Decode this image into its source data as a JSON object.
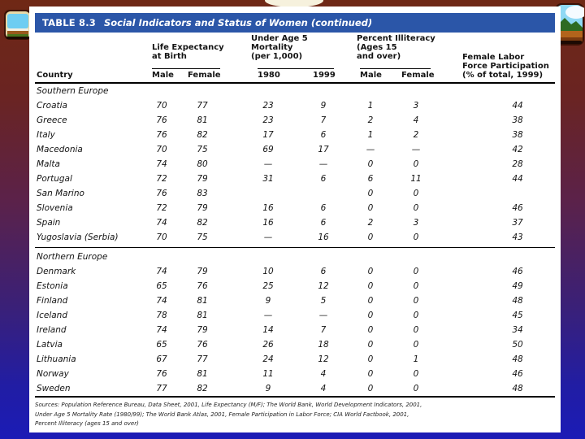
{
  "slide": {
    "title_label": "TABLE 8.3",
    "title_text": "Social Indicators and Status of Women (continued)",
    "accent_blue": "#2b56a8",
    "bg_top_color": "#6f2815",
    "bg_bottom_color": "#1b1bb6"
  },
  "table": {
    "header": {
      "country": "Country",
      "groups": [
        {
          "title": "Life Expectancy\nat Birth",
          "subs": [
            "Male",
            "Female"
          ]
        },
        {
          "title": "Under Age 5\nMortality\n(per 1,000)",
          "subs": [
            "1980",
            "1999"
          ]
        },
        {
          "title": "Percent Illiteracy\n(Ages 15\nand over)",
          "subs": [
            "Male",
            "Female"
          ]
        },
        {
          "title": "Female Labor\nForce Participation\n(% of total, 1999)",
          "subs": []
        }
      ]
    },
    "sections": [
      {
        "name": "Southern Europe",
        "rows": [
          [
            "Croatia",
            "70",
            "77",
            "23",
            "9",
            "1",
            "3",
            "44"
          ],
          [
            "Greece",
            "76",
            "81",
            "23",
            "7",
            "2",
            "4",
            "38"
          ],
          [
            "Italy",
            "76",
            "82",
            "17",
            "6",
            "1",
            "2",
            "38"
          ],
          [
            "Macedonia",
            "70",
            "75",
            "69",
            "17",
            "—",
            "—",
            "42"
          ],
          [
            "Malta",
            "74",
            "80",
            "—",
            "—",
            "0",
            "0",
            "28"
          ],
          [
            "Portugal",
            "72",
            "79",
            "31",
            "6",
            "6",
            "11",
            "44"
          ],
          [
            "San Marino",
            "76",
            "83",
            "",
            "",
            "0",
            "0",
            ""
          ],
          [
            "Slovenia",
            "72",
            "79",
            "16",
            "6",
            "0",
            "0",
            "46"
          ],
          [
            "Spain",
            "74",
            "82",
            "16",
            "6",
            "2",
            "3",
            "37"
          ],
          [
            "Yugoslavia (Serbia)",
            "70",
            "75",
            "—",
            "16",
            "0",
            "0",
            "43"
          ]
        ]
      },
      {
        "name": "Northern Europe",
        "rows": [
          [
            "Denmark",
            "74",
            "79",
            "10",
            "6",
            "0",
            "0",
            "46"
          ],
          [
            "Estonia",
            "65",
            "76",
            "25",
            "12",
            "0",
            "0",
            "49"
          ],
          [
            "Finland",
            "74",
            "81",
            "9",
            "5",
            "0",
            "0",
            "48"
          ],
          [
            "Iceland",
            "78",
            "81",
            "—",
            "—",
            "0",
            "0",
            "45"
          ],
          [
            "Ireland",
            "74",
            "79",
            "14",
            "7",
            "0",
            "0",
            "34"
          ],
          [
            "Latvia",
            "65",
            "76",
            "26",
            "18",
            "0",
            "0",
            "50"
          ],
          [
            "Lithuania",
            "67",
            "77",
            "24",
            "12",
            "0",
            "1",
            "48"
          ],
          [
            "Norway",
            "76",
            "81",
            "11",
            "4",
            "0",
            "0",
            "46"
          ],
          [
            "Sweden",
            "77",
            "82",
            "9",
            "4",
            "0",
            "0",
            "48"
          ]
        ]
      }
    ],
    "sources": "Sources: Population Reference Bureau, Data Sheet, 2001, Life Expectancy (M/F); The World Bank, World Development Indicators, 2001,\nUnder Age 5 Mortality Rate (1980/99); The World Bank Atlas, 2001, Female Participation in Labor Force; CIA World Factbook, 2001,\nPercent Illiteracy (ages 15 and over)"
  }
}
